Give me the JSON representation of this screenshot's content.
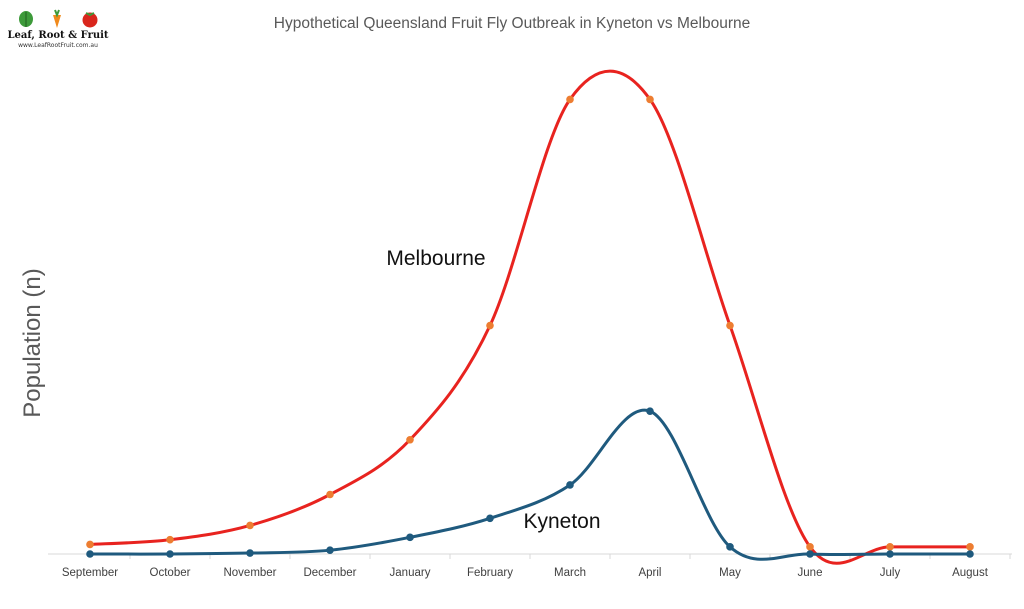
{
  "logo": {
    "brand": "Leaf,  Root & Fruit",
    "url": "www.LeafRootFruit.com.au",
    "icons": [
      "leaf-icon",
      "carrot-icon",
      "tomato-icon"
    ]
  },
  "chart_data": {
    "type": "line",
    "title": "Hypothetical Queensland Fruit Fly Outbreak in Kyneton vs Melbourne",
    "xlabel": "",
    "ylabel": "Population (n)",
    "categories": [
      "September",
      "October",
      "November",
      "December",
      "January",
      "February",
      "March",
      "April",
      "May",
      "June",
      "July",
      "August"
    ],
    "ylim": [
      0,
      100
    ],
    "grid": false,
    "legend": "none",
    "smooth": true,
    "series": [
      {
        "name": "Melbourne",
        "color": "#e8231f",
        "marker_color": "#ed7d31",
        "values": [
          2,
          3,
          6,
          12.5,
          24,
          48,
          95.5,
          95.5,
          48,
          1.5,
          1.5,
          1.5
        ]
      },
      {
        "name": "Kyneton",
        "color": "#1f5a7e",
        "marker_color": "#1f5a7e",
        "values": [
          0,
          0,
          0.2,
          0.8,
          3.5,
          7.5,
          14.5,
          30,
          1.5,
          0,
          0,
          0
        ]
      }
    ],
    "annotations": [
      "Melbourne",
      "Kyneton"
    ]
  }
}
